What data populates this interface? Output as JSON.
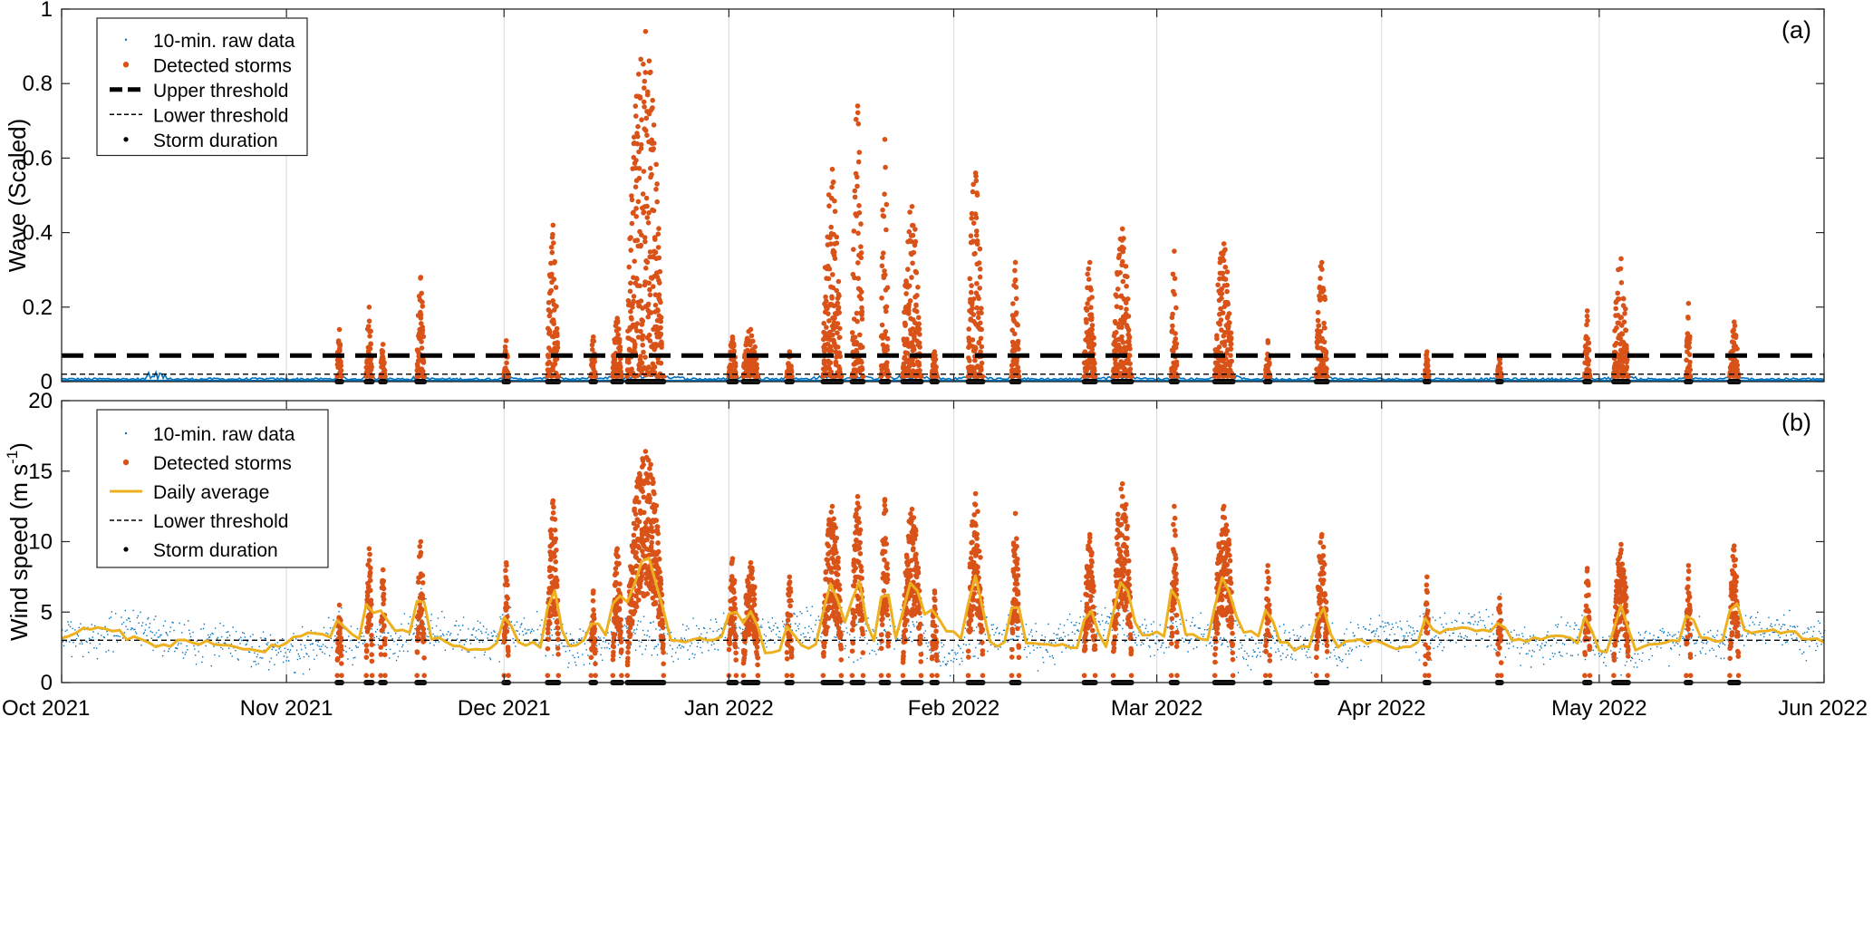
{
  "chart_data": [
    {
      "type": "scatter",
      "panel_label": "(a)",
      "xlabel": "",
      "ylabel": "Wave (Scaled)",
      "ylim": [
        0,
        1
      ],
      "yticks": [
        0,
        0.2,
        0.4,
        0.6,
        0.8,
        1
      ],
      "ytick_labels": [
        "0",
        "0.2",
        "0.4",
        "0.6",
        "0.8",
        "1"
      ],
      "xlim": [
        "2021-10-01",
        "2022-06-01"
      ],
      "xticks": [
        "2021-10-01",
        "2021-11-01",
        "2021-12-01",
        "2022-01-01",
        "2022-02-01",
        "2022-03-01",
        "2022-04-01",
        "2022-05-01",
        "2022-06-01"
      ],
      "xtick_labels": [
        "Oct 2021",
        "Nov 2021",
        "Dec 2021",
        "Jan 2022",
        "Feb 2022",
        "Mar 2022",
        "Apr 2022",
        "May 2022",
        "Jun 2022"
      ],
      "grid": "vertical",
      "legend_position": "top-left",
      "legend": [
        "10-min. raw data",
        "Detected storms",
        "Upper threshold",
        "Lower threshold",
        "Storm duration"
      ],
      "upper_threshold": 0.07,
      "lower_threshold": 0.02,
      "colors": {
        "raw": "#0072BD",
        "storm": "#D95319",
        "threshold": "#000000"
      },
      "storms": [
        {
          "date": "2021-11-08",
          "days": 0.6,
          "peak": 0.14
        },
        {
          "date": "2021-11-12",
          "days": 0.8,
          "peak": 0.2
        },
        {
          "date": "2021-11-14",
          "days": 0.6,
          "peak": 0.1
        },
        {
          "date": "2021-11-19",
          "days": 1.0,
          "peak": 0.28
        },
        {
          "date": "2021-12-01",
          "days": 0.6,
          "peak": 0.11
        },
        {
          "date": "2021-12-07",
          "days": 1.5,
          "peak": 0.42
        },
        {
          "date": "2021-12-13",
          "days": 0.6,
          "peak": 0.12
        },
        {
          "date": "2021-12-16",
          "days": 1.2,
          "peak": 0.17
        },
        {
          "date": "2021-12-18",
          "days": 5.0,
          "peak": 0.94
        },
        {
          "date": "2022-01-01",
          "days": 1.0,
          "peak": 0.12
        },
        {
          "date": "2022-01-03",
          "days": 2.0,
          "peak": 0.14
        },
        {
          "date": "2022-01-09",
          "days": 0.7,
          "peak": 0.08
        },
        {
          "date": "2022-01-14",
          "days": 2.5,
          "peak": 0.57
        },
        {
          "date": "2022-01-18",
          "days": 1.5,
          "peak": 0.74
        },
        {
          "date": "2022-01-22",
          "days": 1.0,
          "peak": 0.65
        },
        {
          "date": "2022-01-25",
          "days": 2.5,
          "peak": 0.47
        },
        {
          "date": "2022-01-29",
          "days": 0.7,
          "peak": 0.08
        },
        {
          "date": "2022-02-03",
          "days": 2.0,
          "peak": 0.56
        },
        {
          "date": "2022-02-09",
          "days": 1.0,
          "peak": 0.32
        },
        {
          "date": "2022-02-19",
          "days": 1.5,
          "peak": 0.32
        },
        {
          "date": "2022-02-23",
          "days": 2.5,
          "peak": 0.41
        },
        {
          "date": "2022-03-03",
          "days": 0.8,
          "peak": 0.35
        },
        {
          "date": "2022-03-09",
          "days": 2.5,
          "peak": 0.37
        },
        {
          "date": "2022-03-16",
          "days": 0.6,
          "peak": 0.11
        },
        {
          "date": "2022-03-23",
          "days": 1.5,
          "peak": 0.32
        },
        {
          "date": "2022-04-07",
          "days": 0.5,
          "peak": 0.08
        },
        {
          "date": "2022-04-17",
          "days": 0.5,
          "peak": 0.07
        },
        {
          "date": "2022-04-29",
          "days": 0.7,
          "peak": 0.19
        },
        {
          "date": "2022-05-03",
          "days": 2.0,
          "peak": 0.33
        },
        {
          "date": "2022-05-13",
          "days": 0.6,
          "peak": 0.21
        },
        {
          "date": "2022-05-19",
          "days": 1.2,
          "peak": 0.16
        }
      ]
    },
    {
      "type": "scatter",
      "panel_label": "(b)",
      "xlabel": "",
      "ylabel": "Wind speed (m s",
      "ylabel_superscript": "-1",
      "ylabel_suffix": ")",
      "ylim": [
        0,
        20
      ],
      "yticks": [
        0,
        5,
        10,
        15,
        20
      ],
      "ytick_labels": [
        "0",
        "5",
        "10",
        "15",
        "20"
      ],
      "xlim": [
        "2021-10-01",
        "2022-06-01"
      ],
      "xticks": [
        "2021-10-01",
        "2021-11-01",
        "2021-12-01",
        "2022-01-01",
        "2022-02-01",
        "2022-03-01",
        "2022-04-01",
        "2022-05-01",
        "2022-06-01"
      ],
      "xtick_labels": [
        "Oct 2021",
        "Nov 2021",
        "Dec 2021",
        "Jan 2022",
        "Feb 2022",
        "Mar 2022",
        "Apr 2022",
        "May 2022",
        "Jun 2022"
      ],
      "grid": "vertical",
      "legend_position": "top-left",
      "legend": [
        "10-min. raw data",
        "Detected storms",
        "Daily average",
        "Lower threshold",
        "Storm duration"
      ],
      "lower_threshold": 3.0,
      "colors": {
        "raw": "#0072BD",
        "storm": "#D95319",
        "daily": "#EDB120",
        "threshold": "#000000"
      },
      "storms": [
        {
          "date": "2021-11-08",
          "days": 0.6,
          "peak": 5.5
        },
        {
          "date": "2021-11-12",
          "days": 0.8,
          "peak": 9.5
        },
        {
          "date": "2021-11-14",
          "days": 0.6,
          "peak": 8.0
        },
        {
          "date": "2021-11-19",
          "days": 1.0,
          "peak": 10.0
        },
        {
          "date": "2021-12-01",
          "days": 0.6,
          "peak": 8.5
        },
        {
          "date": "2021-12-07",
          "days": 1.5,
          "peak": 12.9
        },
        {
          "date": "2021-12-13",
          "days": 0.6,
          "peak": 6.5
        },
        {
          "date": "2021-12-16",
          "days": 1.2,
          "peak": 9.5
        },
        {
          "date": "2021-12-18",
          "days": 5.0,
          "peak": 16.4
        },
        {
          "date": "2022-01-01",
          "days": 1.0,
          "peak": 8.8
        },
        {
          "date": "2022-01-03",
          "days": 2.0,
          "peak": 8.5
        },
        {
          "date": "2022-01-09",
          "days": 0.7,
          "peak": 7.5
        },
        {
          "date": "2022-01-14",
          "days": 2.5,
          "peak": 12.5
        },
        {
          "date": "2022-01-18",
          "days": 1.5,
          "peak": 13.2
        },
        {
          "date": "2022-01-22",
          "days": 1.0,
          "peak": 13.0
        },
        {
          "date": "2022-01-25",
          "days": 2.5,
          "peak": 12.3
        },
        {
          "date": "2022-01-29",
          "days": 0.7,
          "peak": 6.5
        },
        {
          "date": "2022-02-03",
          "days": 2.0,
          "peak": 13.4
        },
        {
          "date": "2022-02-09",
          "days": 1.0,
          "peak": 12.0
        },
        {
          "date": "2022-02-19",
          "days": 1.5,
          "peak": 10.5
        },
        {
          "date": "2022-02-23",
          "days": 2.5,
          "peak": 14.1
        },
        {
          "date": "2022-03-03",
          "days": 0.8,
          "peak": 12.5
        },
        {
          "date": "2022-03-09",
          "days": 2.5,
          "peak": 12.5
        },
        {
          "date": "2022-03-16",
          "days": 0.6,
          "peak": 8.3
        },
        {
          "date": "2022-03-23",
          "days": 1.5,
          "peak": 10.5
        },
        {
          "date": "2022-04-07",
          "days": 0.5,
          "peak": 7.5
        },
        {
          "date": "2022-04-17",
          "days": 0.5,
          "peak": 6.0
        },
        {
          "date": "2022-04-29",
          "days": 0.7,
          "peak": 8.1
        },
        {
          "date": "2022-05-03",
          "days": 2.0,
          "peak": 9.8
        },
        {
          "date": "2022-05-13",
          "days": 0.6,
          "peak": 8.3
        },
        {
          "date": "2022-05-19",
          "days": 1.2,
          "peak": 9.7
        }
      ]
    }
  ]
}
